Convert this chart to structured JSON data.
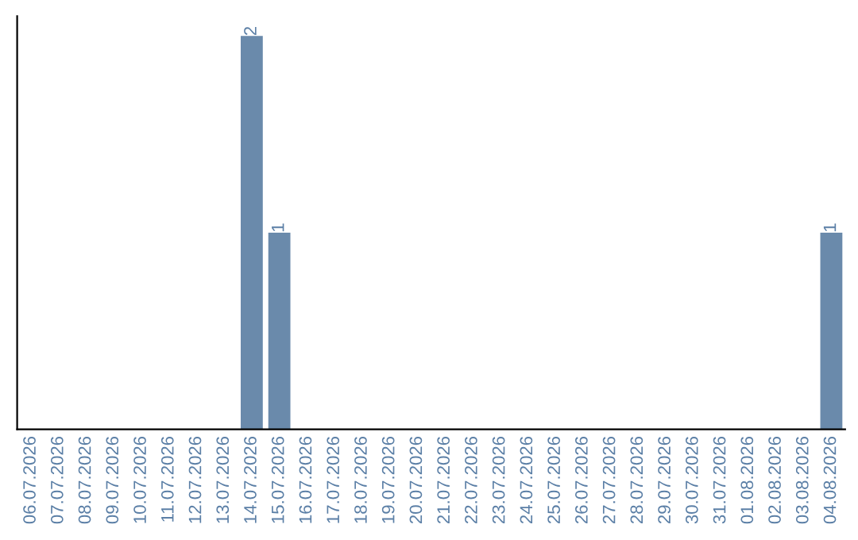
{
  "chart_data": {
    "type": "bar",
    "categories": [
      "06.07.2026",
      "07.07.2026",
      "08.07.2026",
      "09.07.2026",
      "10.07.2026",
      "11.07.2026",
      "12.07.2026",
      "13.07.2026",
      "14.07.2026",
      "15.07.2026",
      "16.07.2026",
      "17.07.2026",
      "18.07.2026",
      "19.07.2026",
      "20.07.2026",
      "21.07.2026",
      "22.07.2026",
      "23.07.2026",
      "24.07.2026",
      "25.07.2026",
      "26.07.2026",
      "27.07.2026",
      "28.07.2026",
      "29.07.2026",
      "30.07.2026",
      "31.07.2026",
      "01.08.2026",
      "02.08.2026",
      "03.08.2026",
      "04.08.2026"
    ],
    "values": [
      0,
      0,
      0,
      0,
      0,
      0,
      0,
      0,
      2,
      1,
      0,
      0,
      0,
      0,
      0,
      0,
      0,
      0,
      0,
      0,
      0,
      0,
      0,
      0,
      0,
      0,
      0,
      0,
      0,
      1
    ],
    "value_labels": [
      null,
      null,
      null,
      null,
      null,
      null,
      null,
      null,
      "2",
      "1",
      null,
      null,
      null,
      null,
      null,
      null,
      null,
      null,
      null,
      null,
      null,
      null,
      null,
      null,
      null,
      null,
      null,
      null,
      null,
      "1"
    ],
    "color": "#6a8aab",
    "tick_labels": "x",
    "grid": false,
    "legend": false
  }
}
